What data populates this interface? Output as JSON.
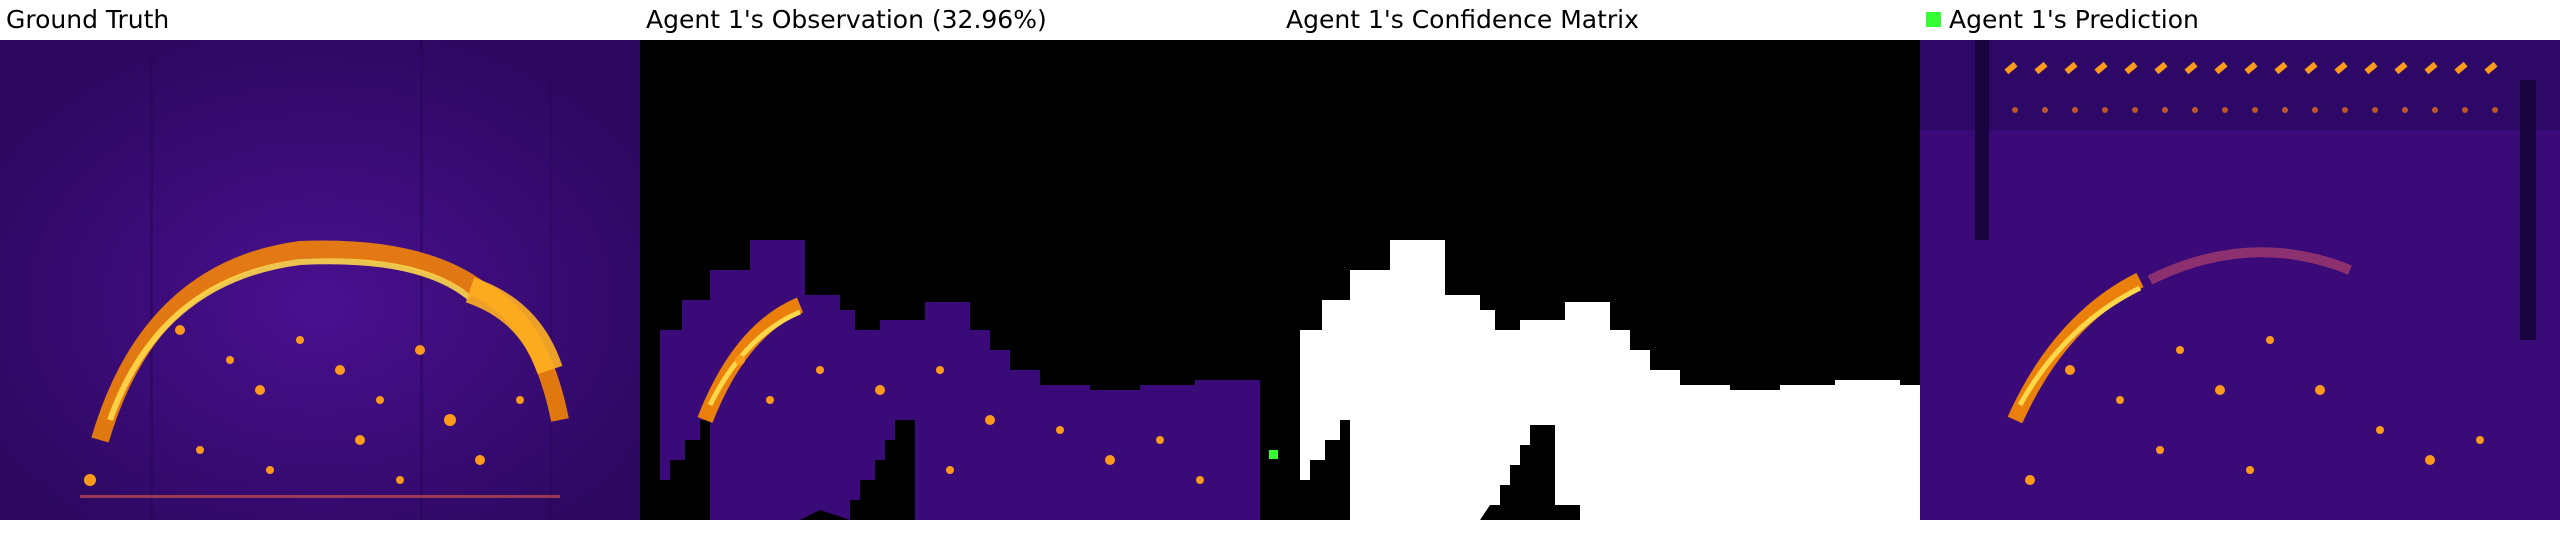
{
  "panels": [
    {
      "title": "Ground Truth"
    },
    {
      "title": "Agent 1's Observation (32.96%)"
    },
    {
      "title": "Agent 1's Confidence Matrix"
    },
    {
      "title": "Agent 1's Prediction"
    }
  ],
  "colors": {
    "background_purple": "#3a0a78",
    "hot_orange": "#ff8c00",
    "hot_yellow": "#ffd84a",
    "mask_black": "#000000",
    "mask_white": "#ffffff",
    "agent_marker": "#33ff33"
  }
}
